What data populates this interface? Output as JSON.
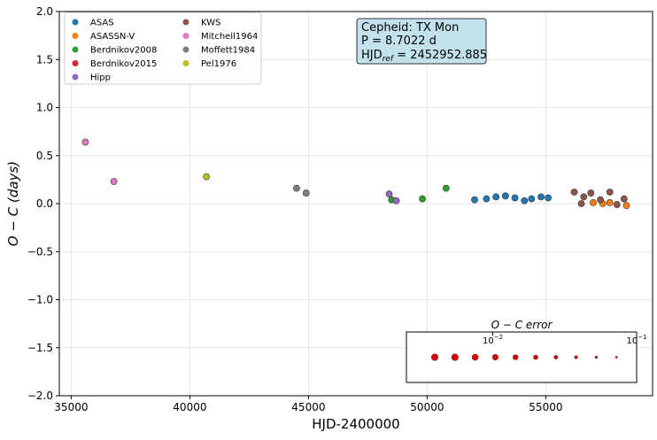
{
  "chart_data": {
    "type": "scatter",
    "xlabel": "HJD-2400000",
    "ylabel": "O − C (days)",
    "xlim": [
      34500,
      59500
    ],
    "ylim": [
      -2.0,
      2.0
    ],
    "xticks": [
      "35000",
      "40000",
      "45000",
      "50000",
      "55000"
    ],
    "yticks": [
      "−2.0",
      "−1.5",
      "−1.0",
      "−0.5",
      "0.0",
      "0.5",
      "1.0",
      "1.5",
      "2.0"
    ],
    "grid": true,
    "legend_placement": "top-left",
    "series": [
      {
        "name": "ASAS",
        "color": "#1f77b4",
        "points": [
          [
            52000,
            0.04
          ],
          [
            52500,
            0.05
          ],
          [
            52900,
            0.07
          ],
          [
            53300,
            0.08
          ],
          [
            53700,
            0.06
          ],
          [
            54100,
            0.03
          ],
          [
            54400,
            0.05
          ],
          [
            54800,
            0.07
          ],
          [
            55100,
            0.06
          ]
        ]
      },
      {
        "name": "ASASSN-V",
        "color": "#ff7f0e",
        "points": [
          [
            57000,
            0.01
          ],
          [
            57400,
            0.0
          ],
          [
            57700,
            0.01
          ],
          [
            58400,
            -0.02
          ]
        ]
      },
      {
        "name": "Berdnikov2008",
        "color": "#2ca02c",
        "points": [
          [
            48500,
            0.04
          ],
          [
            49800,
            0.05
          ],
          [
            50800,
            0.16
          ]
        ]
      },
      {
        "name": "Berdnikov2015",
        "color": "#d62728",
        "points": []
      },
      {
        "name": "Hipp",
        "color": "#9467bd",
        "points": [
          [
            48400,
            0.1
          ],
          [
            48700,
            0.03
          ]
        ]
      },
      {
        "name": "KWS",
        "color": "#8c564b",
        "points": [
          [
            56200,
            0.12
          ],
          [
            56500,
            0.0
          ],
          [
            56600,
            0.07
          ],
          [
            56900,
            0.11
          ],
          [
            57300,
            0.04
          ],
          [
            57700,
            0.12
          ],
          [
            58000,
            -0.01
          ],
          [
            58300,
            0.05
          ]
        ]
      },
      {
        "name": "Mitchell1964",
        "color": "#e377c2",
        "points": [
          [
            35600,
            0.64
          ],
          [
            36800,
            0.23
          ]
        ]
      },
      {
        "name": "Moffett1984",
        "color": "#7f7f7f",
        "points": [
          [
            44500,
            0.16
          ],
          [
            44900,
            0.11
          ]
        ]
      },
      {
        "name": "Pel1976",
        "color": "#bcbd22",
        "points": [
          [
            40700,
            0.28
          ]
        ]
      }
    ],
    "annotation": {
      "line1": "Cepheid: TX Mon",
      "line2": "P = 8.7022 d",
      "line3_prefix": "HJD",
      "line3_sub": "ref",
      "line3_suffix": " = 2452952.885"
    },
    "error_inset": {
      "title": "O − C error",
      "log_range": [
        -2.6,
        -1.0
      ],
      "tick_labels": [
        "10",
        "10"
      ],
      "tick_exponents": [
        "−2",
        "−1"
      ],
      "tick_values": [
        -2,
        -1
      ],
      "marker_color": "#dd0000",
      "sizes": [
        6.5,
        6.5,
        6.0,
        5.5,
        4.8,
        4.0,
        3.2,
        2.5,
        1.8,
        1.2
      ]
    }
  }
}
